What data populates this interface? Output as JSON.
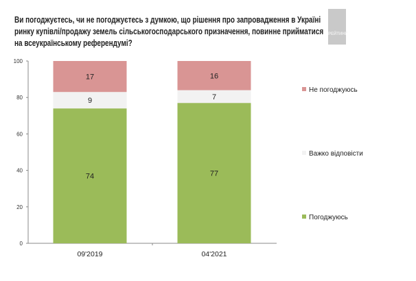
{
  "title": "Ви погоджуєтесь, чи не погоджуєтесь з думкою, що рішення про запровадження в Україні\nринку купівлі/продажу земель сільськогосподарського призначення, повинне прийматися\nна всеукраїнському референдумі?",
  "logo_text": "РЕЙТИНГ",
  "chart_data": {
    "type": "bar",
    "stacked": true,
    "categories": [
      "09'2019",
      "04'2021"
    ],
    "series": [
      {
        "name": "Погоджуюсь",
        "values": [
          74,
          77
        ],
        "color": "#9bbb59"
      },
      {
        "name": "Важко відповісти",
        "values": [
          9,
          7
        ],
        "color": "#f2f2f2"
      },
      {
        "name": "Не погоджуюсь",
        "values": [
          17,
          16
        ],
        "color": "#d99594"
      }
    ],
    "ylim": [
      0,
      100
    ],
    "yticks": [
      0,
      20,
      40,
      60,
      80,
      100
    ],
    "grid": false,
    "legend": "right"
  }
}
